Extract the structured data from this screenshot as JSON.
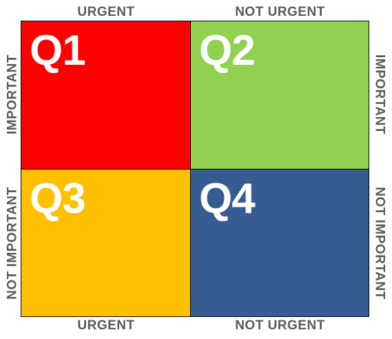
{
  "columns": {
    "top_left": "URGENT",
    "top_right": "NOT URGENT",
    "bottom_left": "URGENT",
    "bottom_right": "NOT URGENT"
  },
  "rows": {
    "left_top": "IMPORTANT",
    "left_bottom": "NOT IMPORTANT",
    "right_top": "IMPORTANT",
    "right_bottom": "NOT IMPORTANT"
  },
  "quadrants": [
    {
      "label": "Q1",
      "color": "#ff0000"
    },
    {
      "label": "Q2",
      "color": "#92d050"
    },
    {
      "label": "Q3",
      "color": "#ffc000"
    },
    {
      "label": "Q4",
      "color": "#355d91"
    }
  ]
}
